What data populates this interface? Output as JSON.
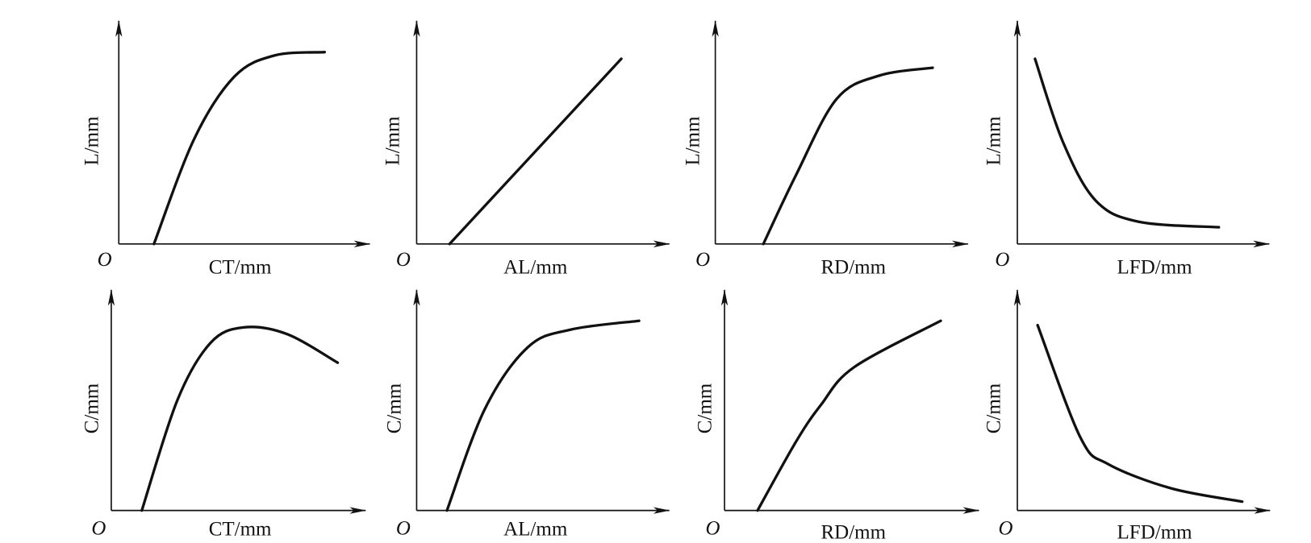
{
  "origin_label": "O",
  "colors": {
    "line": "#111111",
    "background": "#ffffff"
  },
  "chart_data": [
    {
      "type": "line",
      "xlabel": "CT/mm",
      "ylabel": "L/mm",
      "grid": false,
      "xlim": [
        0,
        10
      ],
      "ylim": [
        0,
        10
      ],
      "x": [
        1.4,
        3.0,
        4.6,
        6.2,
        8.2
      ],
      "y": [
        0,
        4.7,
        7.5,
        8.45,
        8.6
      ]
    },
    {
      "type": "line",
      "xlabel": "AL/mm",
      "ylabel": "L/mm",
      "grid": false,
      "xlim": [
        0,
        10
      ],
      "ylim": [
        0,
        10
      ],
      "x": [
        1.3,
        8.1
      ],
      "y": [
        0,
        8.3
      ]
    },
    {
      "type": "line",
      "xlabel": "RD/mm",
      "ylabel": "L/mm",
      "grid": false,
      "xlim": [
        0,
        10
      ],
      "ylim": [
        0,
        10
      ],
      "x": [
        1.9,
        3.2,
        4.8,
        6.5,
        8.6
      ],
      "y": [
        0,
        3.1,
        6.5,
        7.55,
        7.9
      ]
    },
    {
      "type": "line",
      "xlabel": "LFD/mm",
      "ylabel": "L/mm",
      "grid": false,
      "xlim": [
        0,
        10
      ],
      "ylim": [
        0,
        10
      ],
      "x": [
        0.7,
        1.8,
        3.1,
        4.8,
        8.0
      ],
      "y": [
        8.3,
        4.6,
        1.96,
        1.0,
        0.75
      ]
    },
    {
      "type": "line",
      "xlabel": "CT/mm",
      "ylabel": "C/mm",
      "grid": false,
      "xlim": [
        0,
        10
      ],
      "ylim": [
        0,
        10
      ],
      "x": [
        1.2,
        2.6,
        3.9,
        5.2,
        6.9,
        8.9
      ],
      "y": [
        0,
        5.0,
        7.6,
        8.3,
        8.0,
        6.7
      ]
    },
    {
      "type": "line",
      "xlabel": "AL/mm",
      "ylabel": "C/mm",
      "grid": false,
      "xlim": [
        0,
        10
      ],
      "ylim": [
        0,
        10
      ],
      "x": [
        1.2,
        2.7,
        4.4,
        6.1,
        8.8
      ],
      "y": [
        0,
        4.6,
        7.4,
        8.2,
        8.6
      ]
    },
    {
      "type": "line",
      "xlabel": "RD/mm",
      "ylabel": "C/mm",
      "grid": false,
      "xlim": [
        0,
        10
      ],
      "ylim": [
        0,
        10
      ],
      "x": [
        1.3,
        2.8,
        3.8,
        5.1,
        8.5
      ],
      "y": [
        0,
        3.1,
        4.8,
        6.5,
        8.6
      ]
    },
    {
      "type": "line",
      "xlabel": "LFD/mm",
      "ylabel": "C/mm",
      "grid": false,
      "xlim": [
        0,
        10
      ],
      "ylim": [
        0,
        10
      ],
      "x": [
        0.8,
        2.5,
        3.6,
        6.1,
        8.9
      ],
      "y": [
        8.4,
        3.3,
        2.1,
        1.0,
        0.4
      ]
    }
  ]
}
